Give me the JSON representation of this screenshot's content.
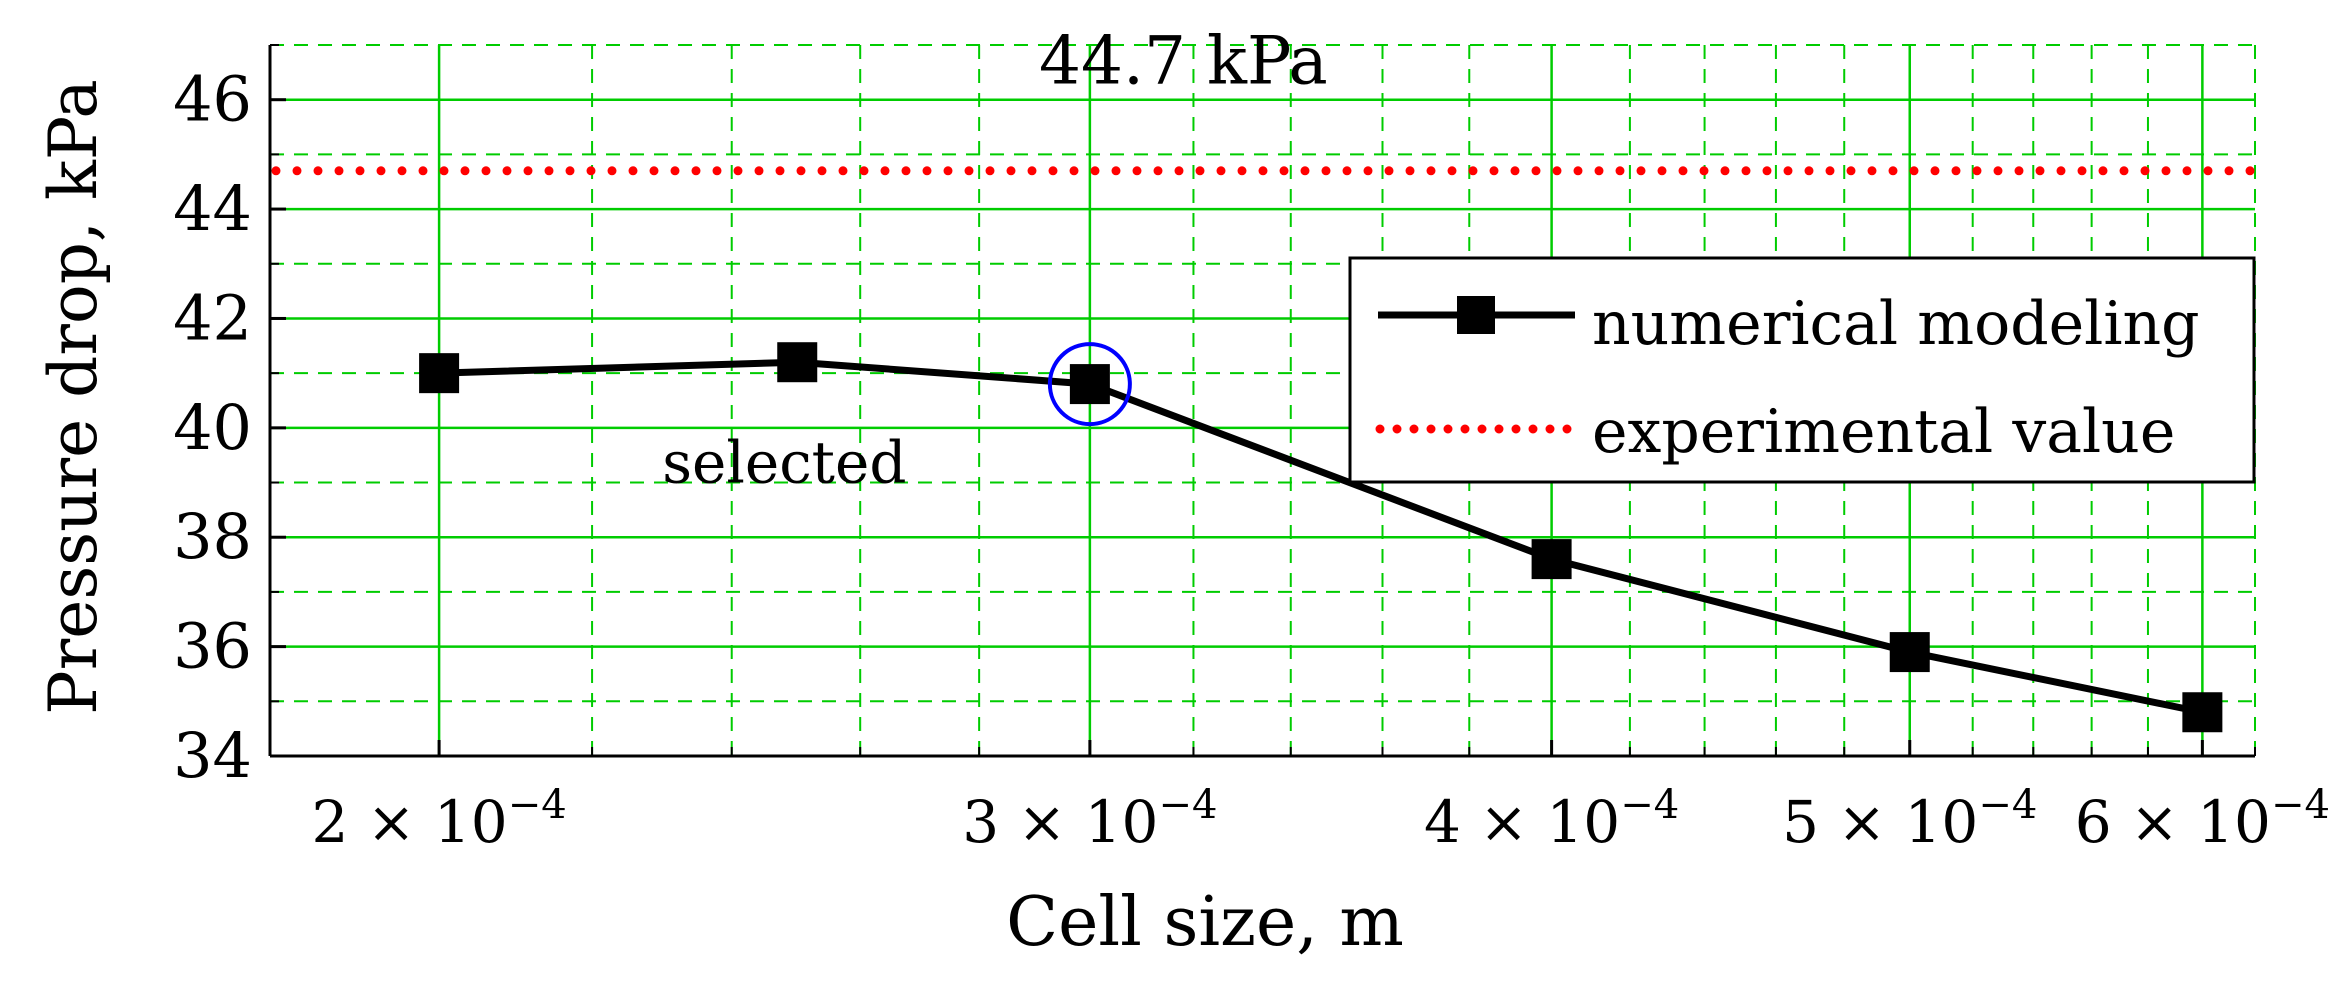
{
  "chart_data": {
    "type": "line",
    "title": "",
    "xlabel": "Cell size, m",
    "ylabel": "Pressure drop, kPa",
    "xlim": [
      0.00018,
      0.00062
    ],
    "ylim": [
      34,
      47
    ],
    "x_major_ticks": [
      0.0002,
      0.0003,
      0.0004,
      0.0005,
      0.0006
    ],
    "x_tick_labels": [
      {
        "mantissa": "2",
        "sep": " × 10",
        "exp": "−4"
      },
      {
        "mantissa": "3",
        "sep": " × 10",
        "exp": "−4"
      },
      {
        "mantissa": "4",
        "sep": " × 10",
        "exp": "−4"
      },
      {
        "mantissa": "5",
        "sep": " × 10",
        "exp": "−4"
      },
      {
        "mantissa": "6",
        "sep": " × 10",
        "exp": "−4"
      }
    ],
    "x_minor_ticks": [
      0.00018,
      0.00022,
      0.00024,
      0.00026,
      0.00028,
      0.00032,
      0.00034,
      0.00036,
      0.00038,
      0.00042,
      0.00044,
      0.00046,
      0.00048,
      0.00052,
      0.00054,
      0.00056,
      0.00058,
      0.00062
    ],
    "y_major_ticks": [
      34,
      36,
      38,
      40,
      42,
      44,
      46
    ],
    "y_tick_labels": [
      "34",
      "36",
      "38",
      "40",
      "42",
      "44",
      "46"
    ],
    "y_minor_ticks": [
      35,
      37,
      39,
      41,
      43,
      45,
      47
    ],
    "x_scale": "log",
    "grid": true,
    "series": [
      {
        "name": "numerical modeling",
        "style": "line-square-marker",
        "color": "#000000",
        "x": [
          0.0002,
          0.00025,
          0.0003,
          0.0004,
          0.0005,
          0.0006
        ],
        "y": [
          41.0,
          41.2,
          40.8,
          37.6,
          35.9,
          34.8
        ]
      },
      {
        "name": "experimental value",
        "style": "dotted-horizontal",
        "color": "#ff0000",
        "y": 44.7
      }
    ],
    "annotations": [
      {
        "text": "44.7 kPa",
        "color": "#ff0000",
        "anchor_x": 0.000318,
        "anchor_y": 46.3
      },
      {
        "text": "selected",
        "color": "#0000ff",
        "anchor_x": 0.000248,
        "anchor_y": 39.0,
        "circle_at": {
          "x": 0.0003,
          "y": 40.8
        }
      }
    ],
    "legend_position": "center-right",
    "colors": {
      "grid": "#00cc00",
      "axis": "#000000",
      "circle": "#0000ff"
    }
  }
}
